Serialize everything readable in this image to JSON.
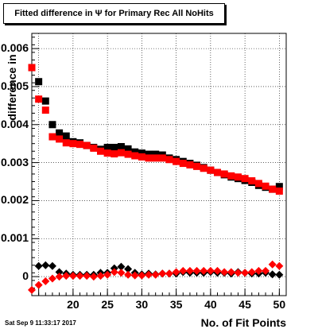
{
  "title": "Fitted difference in  Ψ  for Primary Rec All NoHits",
  "timestamp": "Sat Sep  9 11:33:17 2017",
  "chart_data": {
    "type": "scatter",
    "title": "Fitted difference in  Ψ  for Primary Rec All NoHits",
    "xlabel": "No. of Fit Points",
    "ylabel": "difference in",
    "xlim": [
      14,
      51
    ],
    "ylim": [
      -0.0005,
      0.0064
    ],
    "grid": true,
    "x_ticks": [
      15,
      20,
      25,
      30,
      35,
      40,
      45,
      50
    ],
    "x_tick_labels": [
      "",
      "20",
      "25",
      "30",
      "35",
      "40",
      "45",
      "50"
    ],
    "y_ticks": [
      0,
      0.001,
      0.002,
      0.003,
      0.004,
      0.005,
      0.006
    ],
    "y_tick_labels": [
      "0",
      "0.001",
      "0.002",
      "0.003",
      "0.004",
      "0.005",
      "0.006"
    ],
    "series": [
      {
        "marker": "square",
        "color": "#000000",
        "x": [
          14,
          15,
          16,
          17,
          18,
          19,
          20,
          21,
          22,
          23,
          24,
          25,
          26,
          27,
          28,
          29,
          30,
          31,
          32,
          33,
          34,
          35,
          36,
          37,
          38,
          39,
          40,
          41,
          42,
          43,
          44,
          45,
          46,
          47,
          48,
          49,
          50
        ],
        "y": [
          0.0055,
          0.00513,
          0.00462,
          0.004,
          0.00378,
          0.0037,
          0.00355,
          0.00352,
          0.00345,
          0.0034,
          0.00335,
          0.0034,
          0.0034,
          0.00342,
          0.00336,
          0.00328,
          0.00325,
          0.00322,
          0.00322,
          0.0032,
          0.00312,
          0.00308,
          0.00303,
          0.00298,
          0.00293,
          0.00287,
          0.0028,
          0.00274,
          0.00268,
          0.00262,
          0.00258,
          0.00253,
          0.00248,
          0.0024,
          0.00235,
          0.0023,
          0.00237
        ]
      },
      {
        "marker": "square",
        "color": "#ff0000",
        "x": [
          14,
          15,
          16,
          17,
          18,
          19,
          20,
          21,
          22,
          23,
          24,
          25,
          26,
          27,
          28,
          29,
          30,
          31,
          32,
          33,
          34,
          35,
          36,
          37,
          38,
          39,
          40,
          41,
          42,
          43,
          44,
          45,
          46,
          47,
          48,
          49,
          50
        ],
        "y": [
          0.0055,
          0.00467,
          0.00438,
          0.00368,
          0.00362,
          0.00352,
          0.0035,
          0.00348,
          0.00345,
          0.00338,
          0.0033,
          0.00325,
          0.00323,
          0.00326,
          0.00322,
          0.00318,
          0.00315,
          0.00312,
          0.00312,
          0.00312,
          0.00308,
          0.00303,
          0.00298,
          0.00294,
          0.0029,
          0.00285,
          0.0028,
          0.00274,
          0.0027,
          0.00265,
          0.00262,
          0.00258,
          0.00252,
          0.00245,
          0.00238,
          0.0023,
          0.00225
        ]
      },
      {
        "marker": "diamond",
        "color": "#000000",
        "x": [
          15,
          16,
          17,
          18,
          19,
          20,
          21,
          22,
          23,
          24,
          25,
          26,
          27,
          28,
          29,
          30,
          31,
          32,
          33,
          34,
          35,
          36,
          37,
          38,
          39,
          40,
          41,
          42,
          43,
          44,
          45,
          46,
          47,
          48,
          49,
          50
        ],
        "y": [
          0.00028,
          0.0003,
          0.00028,
          0.00012,
          8e-05,
          5e-05,
          5e-05,
          5e-05,
          5e-05,
          0.0001,
          0.0001,
          0.00022,
          0.00026,
          0.0002,
          0.0001,
          6e-05,
          8e-05,
          6e-05,
          8e-05,
          8e-05,
          8e-05,
          0.00012,
          0.0001,
          0.0001,
          0.0001,
          0.00012,
          0.0001,
          0.0001,
          8e-05,
          0.00012,
          0.0001,
          8e-05,
          8e-05,
          0.0001,
          6e-05,
          5e-05
        ]
      },
      {
        "marker": "diamond",
        "color": "#ff0000",
        "x": [
          14,
          15,
          16,
          17,
          18,
          19,
          20,
          21,
          22,
          23,
          24,
          25,
          26,
          27,
          28,
          29,
          30,
          31,
          32,
          33,
          34,
          35,
          36,
          37,
          38,
          39,
          40,
          41,
          42,
          43,
          44,
          45,
          46,
          47,
          48,
          49,
          50
        ],
        "y": [
          -0.00035,
          -0.00022,
          -0.00012,
          -5e-05,
          0.0,
          2e-05,
          2e-05,
          2e-05,
          2e-05,
          0.0,
          2e-05,
          5e-05,
          0.00012,
          0.0001,
          5e-05,
          3e-05,
          3e-05,
          5e-05,
          5e-05,
          8e-05,
          8e-05,
          0.00012,
          0.00015,
          0.00015,
          0.00015,
          0.00015,
          0.00015,
          0.00015,
          0.00012,
          0.00012,
          0.0001,
          0.0001,
          0.00012,
          0.00015,
          0.00015,
          0.00032,
          0.00028
        ]
      }
    ]
  }
}
